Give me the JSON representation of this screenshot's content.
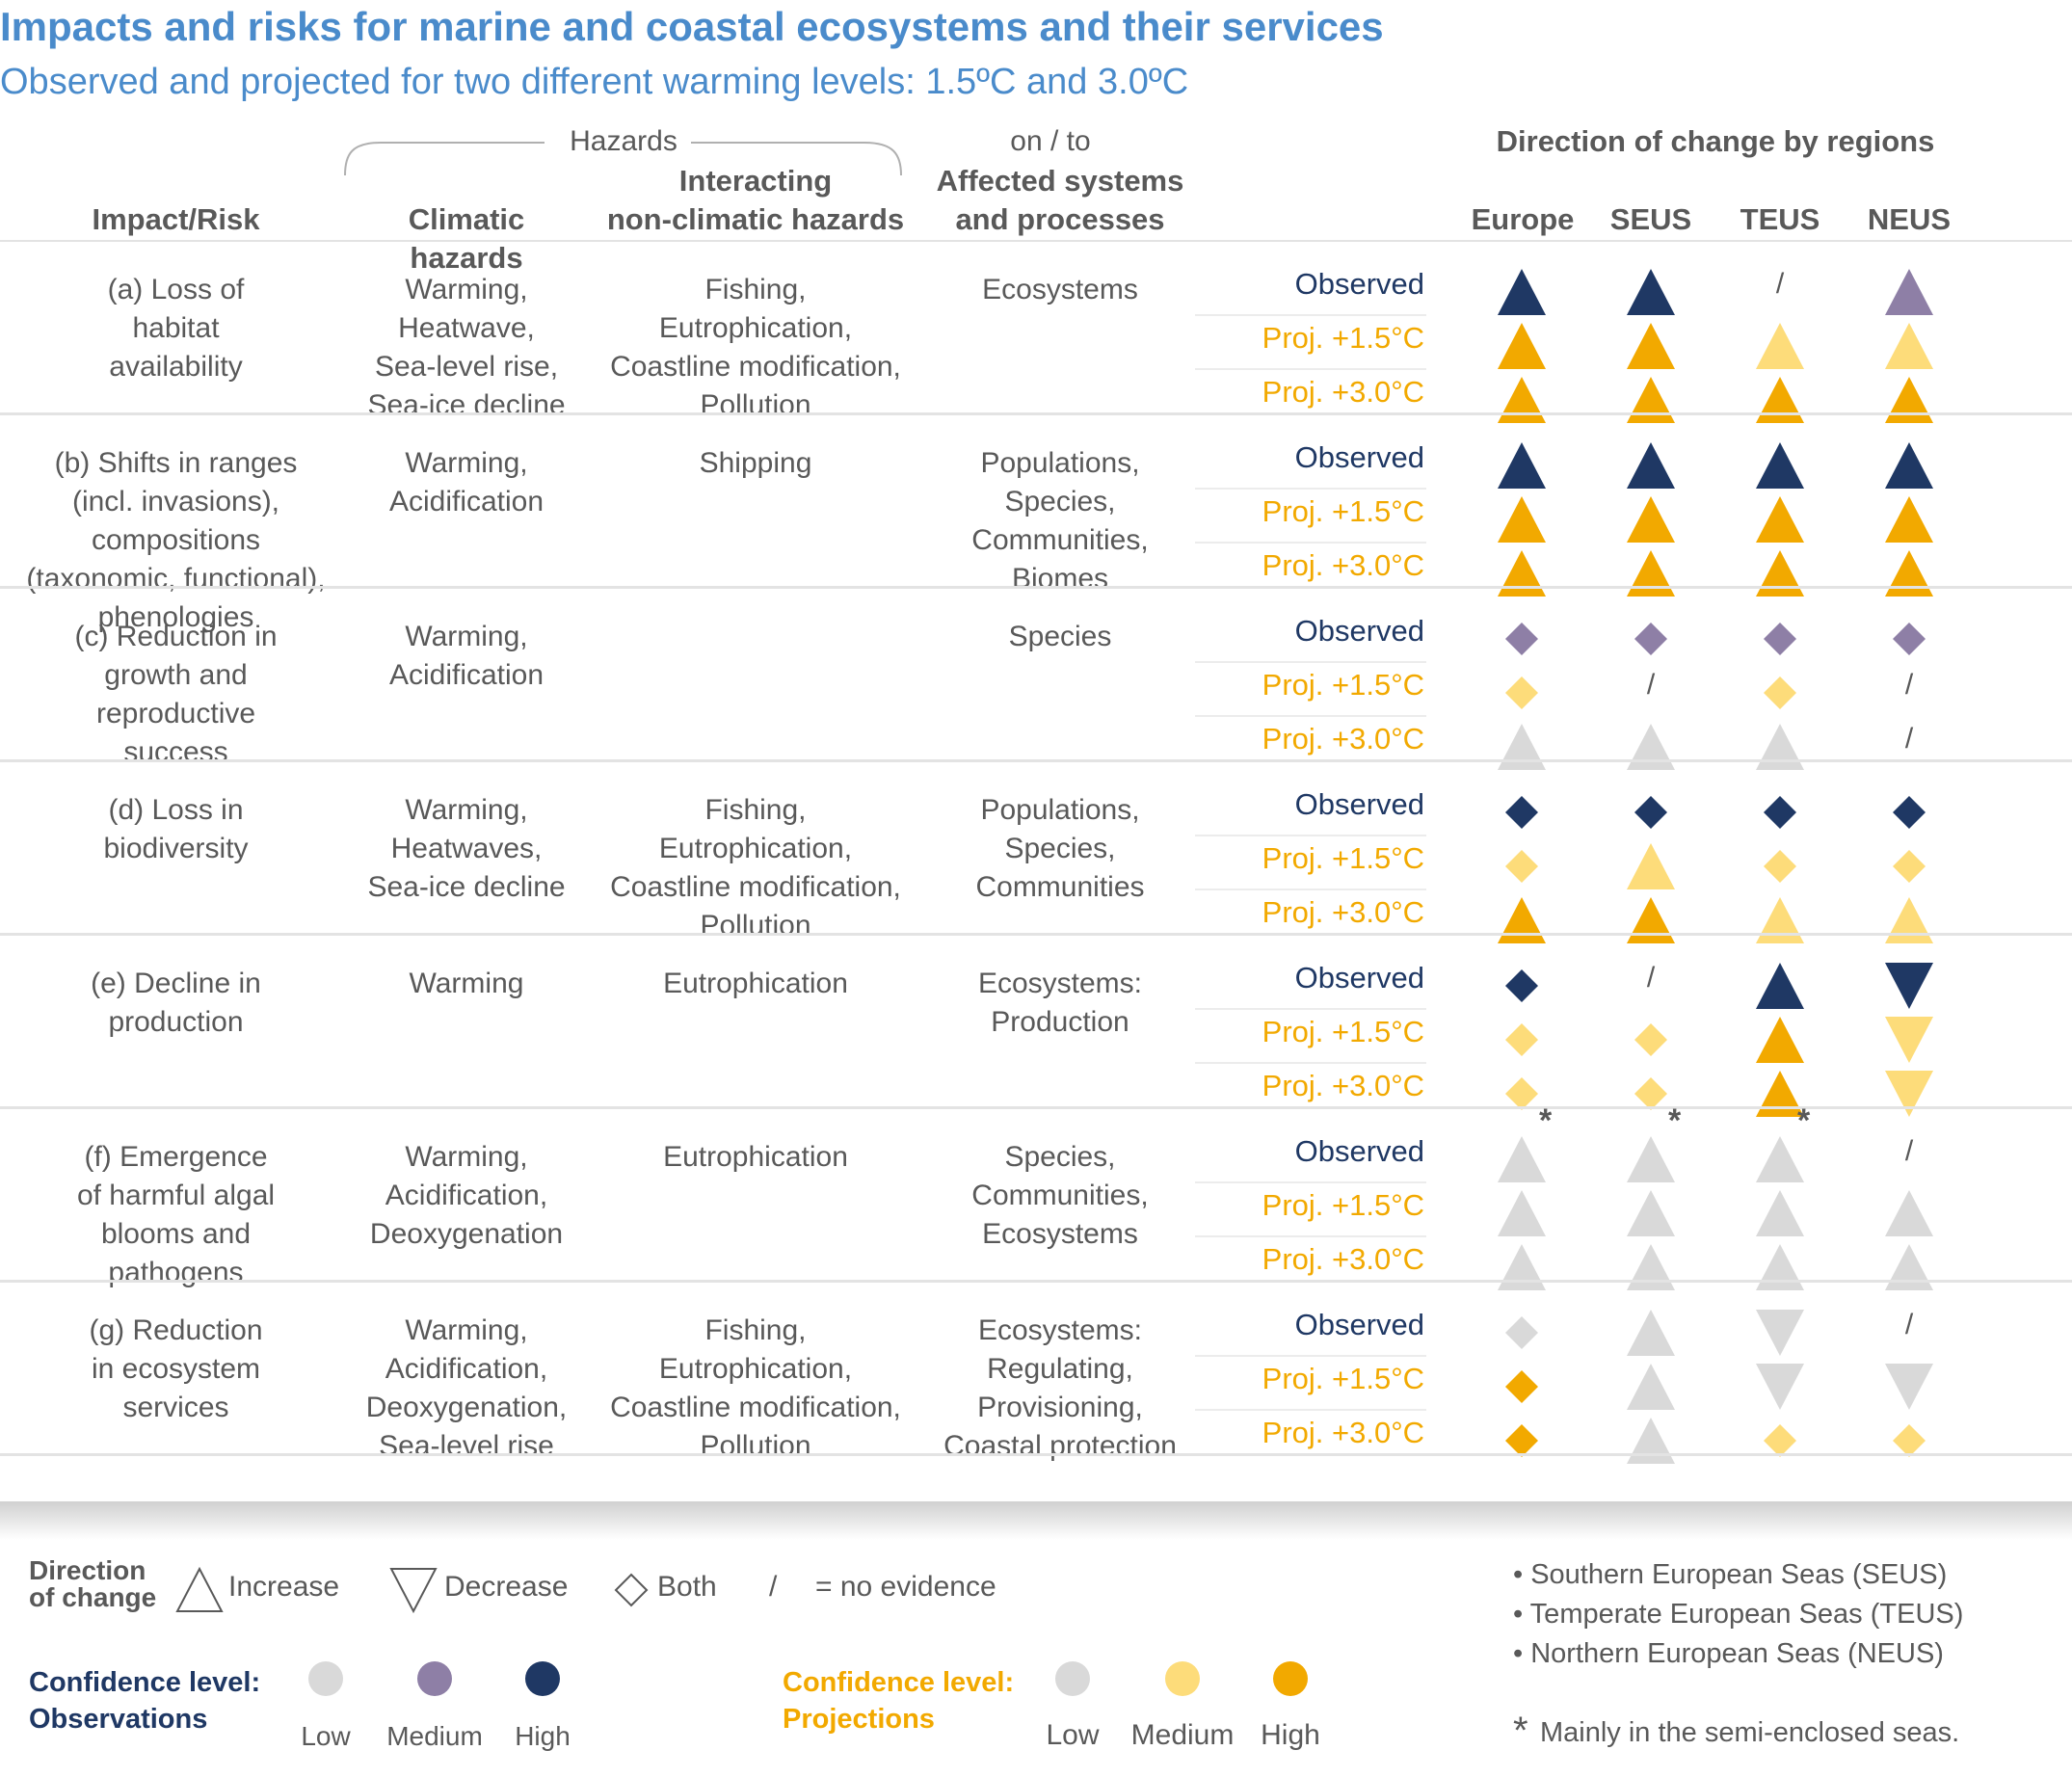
{
  "title": "Impacts and risks for marine and coastal ecosystems and their services",
  "subtitle": "Observed and projected for two different warming levels: 1.5ºC and 3.0ºC",
  "headers": {
    "hazards": "Hazards",
    "on_to": "on / to",
    "impact": "Impact/Risk",
    "climatic": "Climatic hazards",
    "nonclimatic_1": "Interacting",
    "nonclimatic_2": "non-climatic hazards",
    "affected_1": "Affected systems",
    "affected_2": "and processes",
    "direction": "Direction of change by regions",
    "regions": [
      "Europe",
      "SEUS",
      "TEUS",
      "NEUS"
    ]
  },
  "row_labels": [
    "Observed",
    "Proj. +1.5°C",
    "Proj. +3.0°C"
  ],
  "colors": {
    "obs_low": "#d9d9d9",
    "obs_medium": "#8e7fa6",
    "obs_high": "#1f3864",
    "proj_low": "#d9d9d9",
    "proj_medium": "#fddc7a",
    "proj_high": "#f2a900"
  },
  "rows": [
    {
      "impact": [
        "(a) Loss of",
        "habitat",
        "availability"
      ],
      "climatic": [
        "Warming,",
        "Heatwave,",
        "Sea-level rise,",
        "Sea-ice decline"
      ],
      "nonclimatic": [
        "Fishing,",
        "Eutrophication,",
        "Coastline modification,",
        "Pollution"
      ],
      "affected": [
        "Ecosystems"
      ],
      "symbols": [
        [
          {
            "shape": "up",
            "conf": "obs_high"
          },
          {
            "shape": "up",
            "conf": "obs_high"
          },
          {
            "shape": "none"
          },
          {
            "shape": "up",
            "conf": "obs_medium"
          }
        ],
        [
          {
            "shape": "up",
            "conf": "proj_high"
          },
          {
            "shape": "up",
            "conf": "proj_high"
          },
          {
            "shape": "up",
            "conf": "proj_medium"
          },
          {
            "shape": "up",
            "conf": "proj_medium"
          }
        ],
        [
          {
            "shape": "up",
            "conf": "proj_high"
          },
          {
            "shape": "up",
            "conf": "proj_high"
          },
          {
            "shape": "up",
            "conf": "proj_high"
          },
          {
            "shape": "up",
            "conf": "proj_high"
          }
        ]
      ]
    },
    {
      "impact": [
        "(b) Shifts in ranges",
        "(incl. invasions), compositions",
        "(taxonomic, functional),",
        "phenologies"
      ],
      "climatic": [
        "Warming,",
        "Acidification"
      ],
      "nonclimatic": [
        "Shipping"
      ],
      "affected": [
        "Populations,",
        "Species,",
        "Communities,",
        "Biomes"
      ],
      "symbols": [
        [
          {
            "shape": "up",
            "conf": "obs_high"
          },
          {
            "shape": "up",
            "conf": "obs_high"
          },
          {
            "shape": "up",
            "conf": "obs_high"
          },
          {
            "shape": "up",
            "conf": "obs_high"
          }
        ],
        [
          {
            "shape": "up",
            "conf": "proj_high"
          },
          {
            "shape": "up",
            "conf": "proj_high"
          },
          {
            "shape": "up",
            "conf": "proj_high"
          },
          {
            "shape": "up",
            "conf": "proj_high"
          }
        ],
        [
          {
            "shape": "up",
            "conf": "proj_high"
          },
          {
            "shape": "up",
            "conf": "proj_high"
          },
          {
            "shape": "up",
            "conf": "proj_high"
          },
          {
            "shape": "up",
            "conf": "proj_high"
          }
        ]
      ]
    },
    {
      "impact": [
        "(c) Reduction in",
        "growth and",
        "reproductive",
        "success"
      ],
      "climatic": [
        "Warming,",
        "Acidification"
      ],
      "nonclimatic": [],
      "affected": [
        "Species"
      ],
      "symbols": [
        [
          {
            "shape": "diamond",
            "conf": "obs_medium"
          },
          {
            "shape": "diamond",
            "conf": "obs_medium"
          },
          {
            "shape": "diamond",
            "conf": "obs_medium"
          },
          {
            "shape": "diamond",
            "conf": "obs_medium"
          }
        ],
        [
          {
            "shape": "diamond",
            "conf": "proj_medium"
          },
          {
            "shape": "none"
          },
          {
            "shape": "diamond",
            "conf": "proj_medium"
          },
          {
            "shape": "none"
          }
        ],
        [
          {
            "shape": "up",
            "conf": "proj_low"
          },
          {
            "shape": "up",
            "conf": "proj_low"
          },
          {
            "shape": "up",
            "conf": "proj_low"
          },
          {
            "shape": "none"
          }
        ]
      ]
    },
    {
      "impact": [
        "(d) Loss in",
        "biodiversity"
      ],
      "climatic": [
        "Warming,",
        "Heatwaves,",
        "Sea-ice decline"
      ],
      "nonclimatic": [
        "Fishing,",
        "Eutrophication,",
        "Coastline modification,",
        "Pollution"
      ],
      "affected": [
        "Populations,",
        "Species,",
        "Communities"
      ],
      "symbols": [
        [
          {
            "shape": "diamond",
            "conf": "obs_high"
          },
          {
            "shape": "diamond",
            "conf": "obs_high"
          },
          {
            "shape": "diamond",
            "conf": "obs_high"
          },
          {
            "shape": "diamond",
            "conf": "obs_high"
          }
        ],
        [
          {
            "shape": "diamond",
            "conf": "proj_medium"
          },
          {
            "shape": "up",
            "conf": "proj_medium"
          },
          {
            "shape": "diamond",
            "conf": "proj_medium"
          },
          {
            "shape": "diamond",
            "conf": "proj_medium"
          }
        ],
        [
          {
            "shape": "up",
            "conf": "proj_high"
          },
          {
            "shape": "up",
            "conf": "proj_high"
          },
          {
            "shape": "up",
            "conf": "proj_medium"
          },
          {
            "shape": "up",
            "conf": "proj_medium"
          }
        ]
      ]
    },
    {
      "impact": [
        "(e) Decline in",
        "production"
      ],
      "climatic": [
        "Warming"
      ],
      "nonclimatic": [
        "Eutrophication"
      ],
      "affected": [
        "Ecosystems:",
        "Production"
      ],
      "symbols": [
        [
          {
            "shape": "diamond",
            "conf": "obs_high"
          },
          {
            "shape": "none"
          },
          {
            "shape": "up",
            "conf": "obs_high"
          },
          {
            "shape": "down",
            "conf": "obs_high"
          }
        ],
        [
          {
            "shape": "diamond",
            "conf": "proj_medium"
          },
          {
            "shape": "diamond",
            "conf": "proj_medium"
          },
          {
            "shape": "up",
            "conf": "proj_high"
          },
          {
            "shape": "down",
            "conf": "proj_medium"
          }
        ],
        [
          {
            "shape": "diamond",
            "conf": "proj_medium"
          },
          {
            "shape": "diamond",
            "conf": "proj_medium"
          },
          {
            "shape": "up",
            "conf": "proj_high"
          },
          {
            "shape": "down",
            "conf": "proj_medium"
          }
        ]
      ]
    },
    {
      "impact": [
        "(f) Emergence",
        "of harmful algal",
        "blooms and",
        "pathogens"
      ],
      "climatic": [
        "Warming,",
        "Acidification,",
        "Deoxygenation"
      ],
      "nonclimatic": [
        "Eutrophication"
      ],
      "affected": [
        "Species,",
        "Communities,",
        "Ecosystems"
      ],
      "symbols": [
        [
          {
            "shape": "up",
            "conf": "obs_low",
            "star": true
          },
          {
            "shape": "up",
            "conf": "obs_low",
            "star": true
          },
          {
            "shape": "up",
            "conf": "obs_low",
            "star": true
          },
          {
            "shape": "none"
          }
        ],
        [
          {
            "shape": "up",
            "conf": "proj_low"
          },
          {
            "shape": "up",
            "conf": "proj_low"
          },
          {
            "shape": "up",
            "conf": "proj_low"
          },
          {
            "shape": "up",
            "conf": "proj_low"
          }
        ],
        [
          {
            "shape": "up",
            "conf": "proj_low"
          },
          {
            "shape": "up",
            "conf": "proj_low"
          },
          {
            "shape": "up",
            "conf": "proj_low"
          },
          {
            "shape": "up",
            "conf": "proj_low"
          }
        ]
      ]
    },
    {
      "impact": [
        "(g) Reduction",
        "in ecosystem",
        "services"
      ],
      "climatic": [
        "Warming,",
        "Acidification,",
        "Deoxygenation,",
        "Sea-level rise"
      ],
      "nonclimatic": [
        "Fishing,",
        "Eutrophication,",
        "Coastline modification,",
        "Pollution"
      ],
      "affected": [
        "Ecosystems:",
        "Regulating,",
        "Provisioning,",
        "Coastal protection"
      ],
      "symbols": [
        [
          {
            "shape": "diamond",
            "conf": "obs_low"
          },
          {
            "shape": "up",
            "conf": "obs_low"
          },
          {
            "shape": "down",
            "conf": "obs_low"
          },
          {
            "shape": "none"
          }
        ],
        [
          {
            "shape": "diamond",
            "conf": "proj_high"
          },
          {
            "shape": "up",
            "conf": "proj_low"
          },
          {
            "shape": "down",
            "conf": "proj_low"
          },
          {
            "shape": "down",
            "conf": "proj_low"
          }
        ],
        [
          {
            "shape": "diamond",
            "conf": "proj_high"
          },
          {
            "shape": "up",
            "conf": "proj_low"
          },
          {
            "shape": "diamond",
            "conf": "proj_medium"
          },
          {
            "shape": "diamond",
            "conf": "proj_medium"
          }
        ]
      ]
    }
  ],
  "no_evidence_mark": "/",
  "star_mark": "*",
  "legend": {
    "direction_1": "Direction",
    "direction_2": "of change",
    "increase": "Increase",
    "decrease": "Decrease",
    "both": "Both",
    "slash": "/",
    "no_evidence": "= no evidence",
    "conf_obs_1": "Confidence level:",
    "conf_obs_2": "Observations",
    "conf_proj_1": "Confidence level:",
    "conf_proj_2": "Projections",
    "obs_levels": [
      "Low",
      "Medium",
      "High"
    ],
    "proj_levels": [
      "Low",
      "Medium",
      "High"
    ]
  },
  "notes": {
    "seus": "• Southern European Seas (SEUS)",
    "teus": "• Temperate European Seas (TEUS)",
    "neus": "• Northern European Seas (NEUS)",
    "star": "Mainly in the semi-enclosed seas."
  }
}
